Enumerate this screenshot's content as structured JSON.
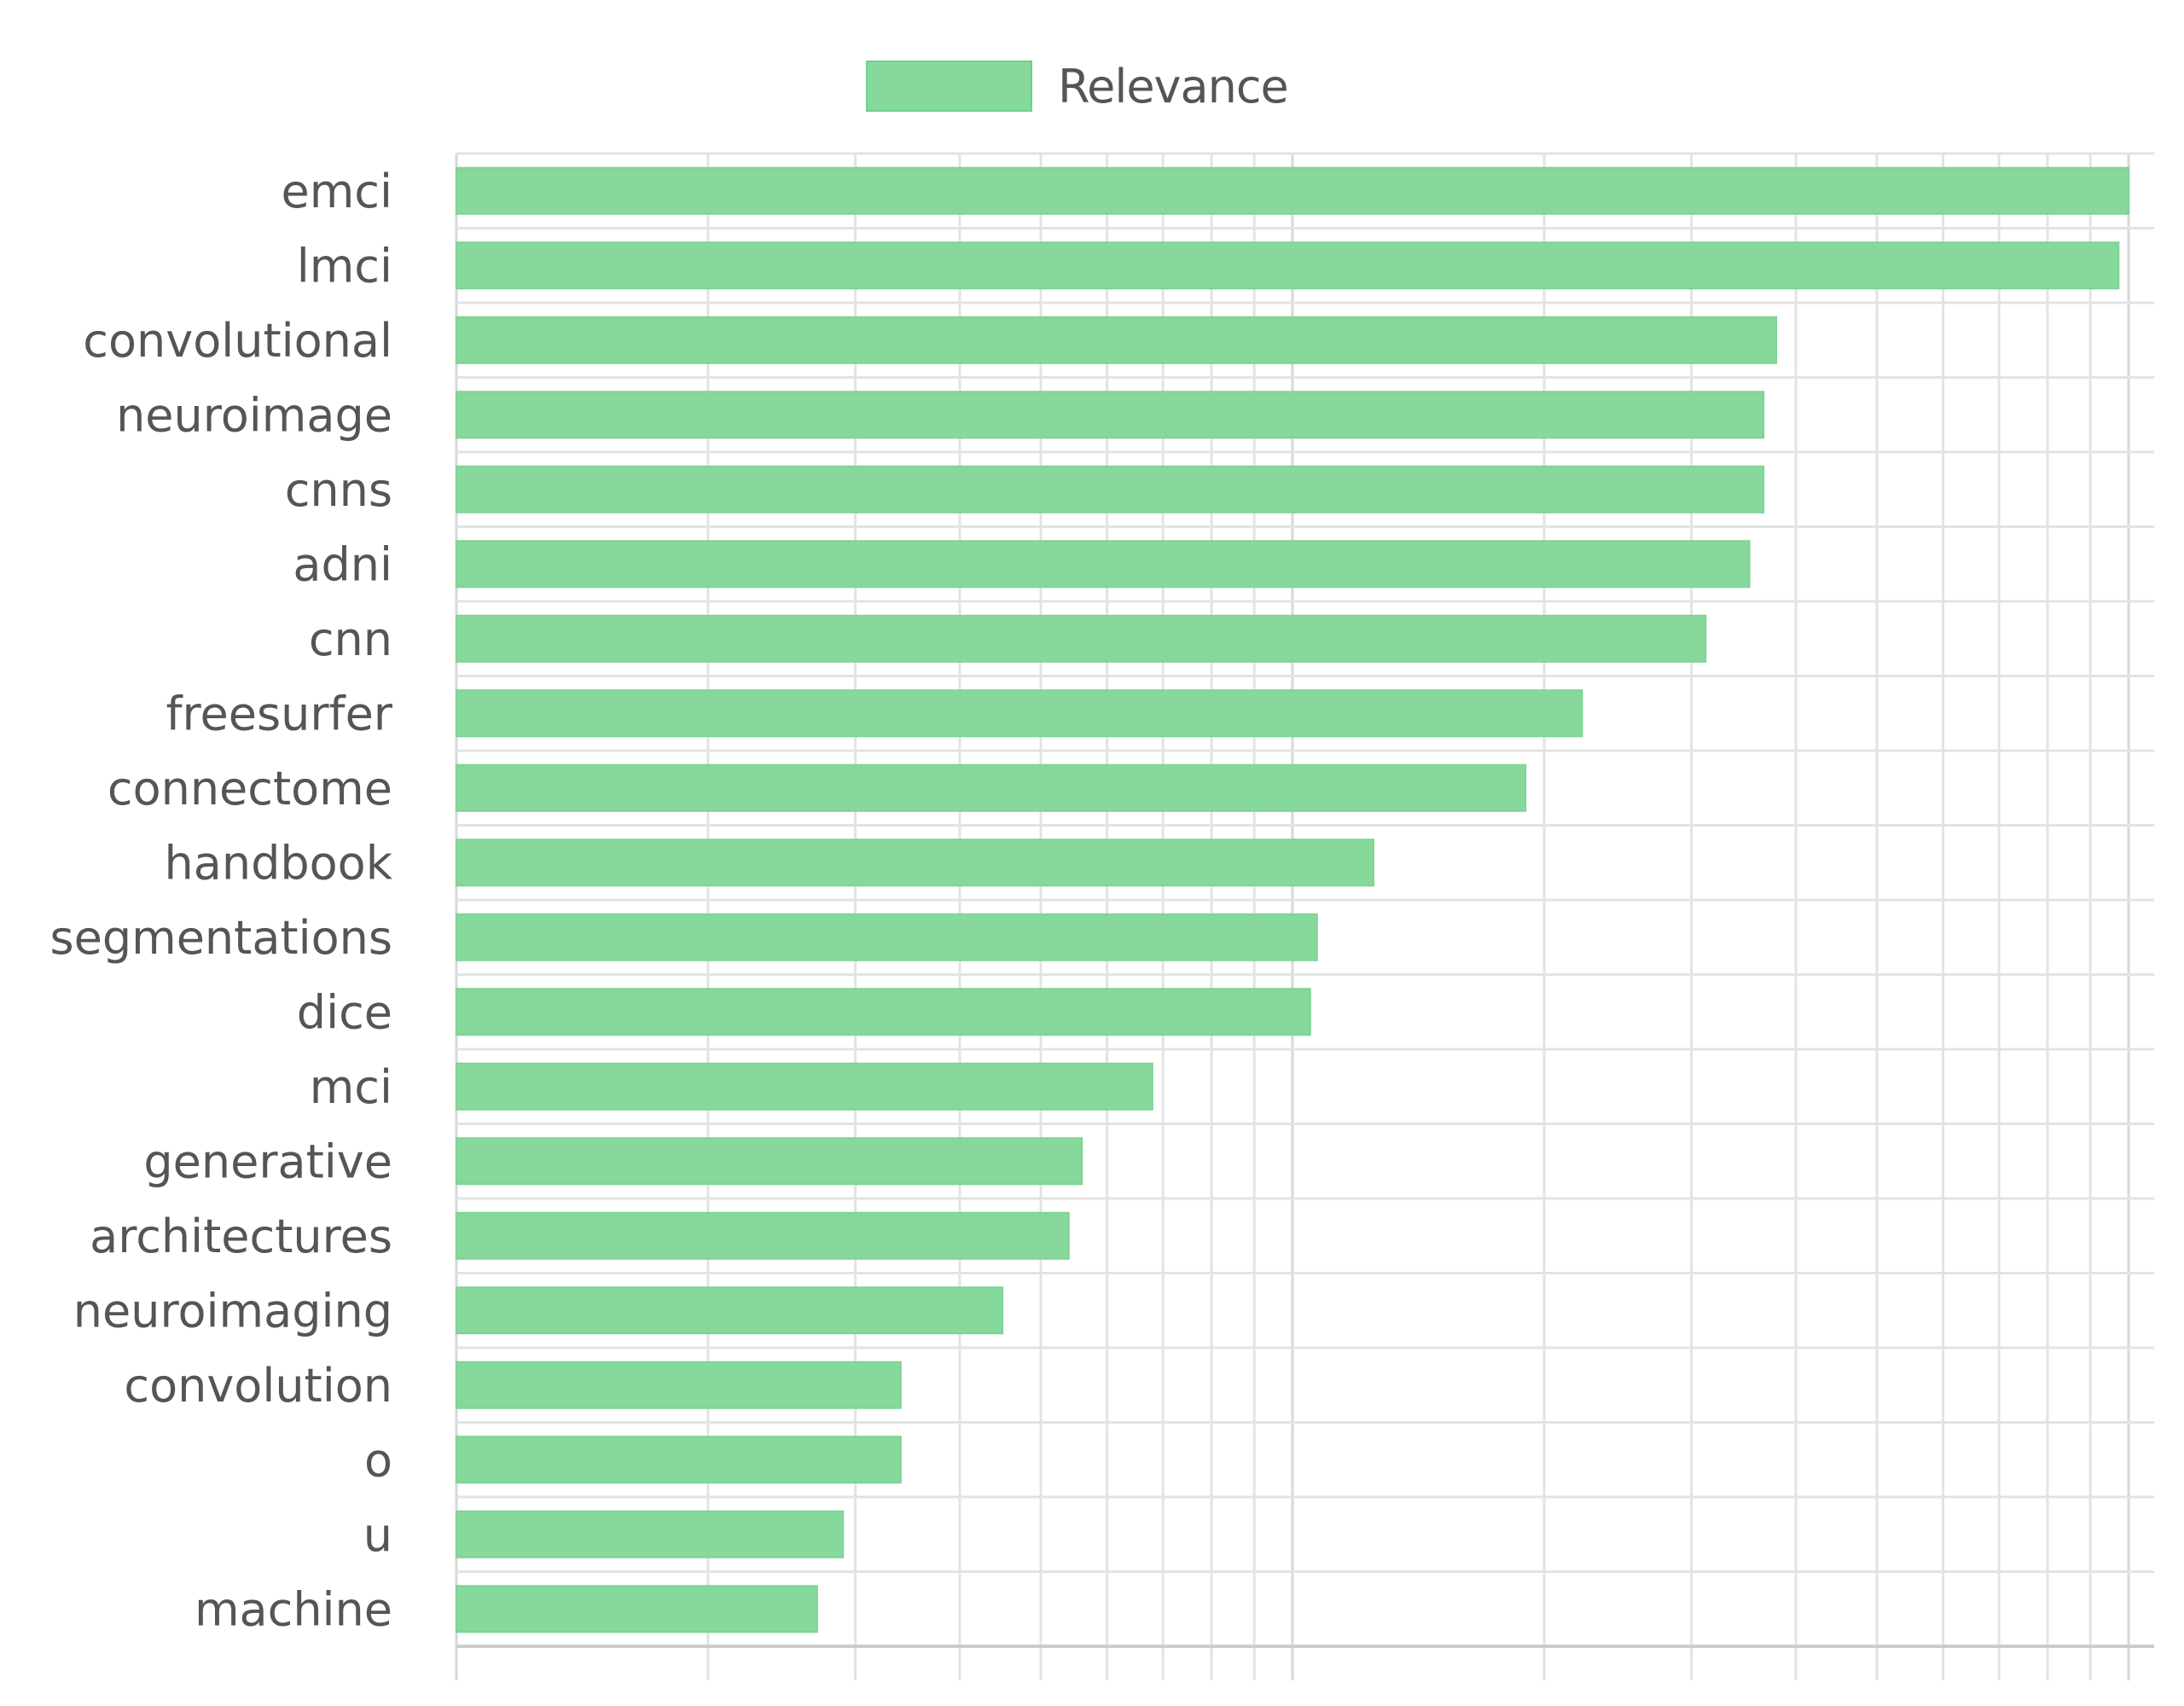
{
  "chart_data": {
    "type": "bar",
    "orientation": "horizontal",
    "x_scale": "log",
    "legend_position": "top-center",
    "grid": true,
    "series": [
      {
        "name": "Relevance",
        "color": "#87d99b",
        "values": [
          100,
          97.3,
          37.9,
          36.6,
          36.6,
          35.2,
          31.2,
          22.2,
          19.0,
          12.5,
          10.7,
          10.5,
          6.8,
          5.6,
          5.4,
          4.5,
          3.4,
          3.4,
          2.9,
          2.7
        ]
      }
    ],
    "categories": [
      "emci",
      "lmci",
      "convolutional",
      "neuroimage",
      "cnns",
      "adni",
      "cnn",
      "freesurfer",
      "connectome",
      "handbook",
      "segmentations",
      "dice",
      "mci",
      "generative",
      "architectures",
      "neuroimaging",
      "convolution",
      "o",
      "u",
      "machine"
    ],
    "xlim": [
      1,
      100
    ],
    "xlabel": "",
    "ylabel": "",
    "title": ""
  }
}
